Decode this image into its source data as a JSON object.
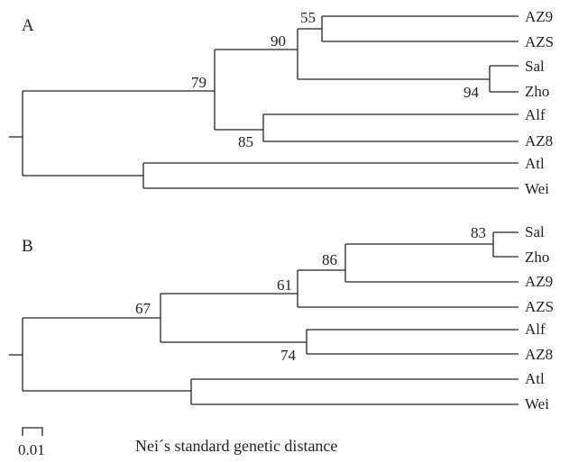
{
  "trees": [
    {
      "panel": "A",
      "leaves": [
        "AZ9",
        "AZS",
        "Sal",
        "Zho",
        "Alf",
        "AZ8",
        "Atl",
        "Wei"
      ],
      "bootstrap": [
        "55",
        "90",
        "79",
        "94",
        "85"
      ]
    },
    {
      "panel": "B",
      "leaves": [
        "Sal",
        "Zho",
        "AZ9",
        "AZS",
        "Alf",
        "AZ8",
        "Atl",
        "Wei"
      ],
      "bootstrap": [
        "83",
        "86",
        "61",
        "67",
        "74"
      ]
    }
  ],
  "scale_bar": {
    "label": "0.01"
  },
  "caption": "Nei´s standard genetic distance"
}
